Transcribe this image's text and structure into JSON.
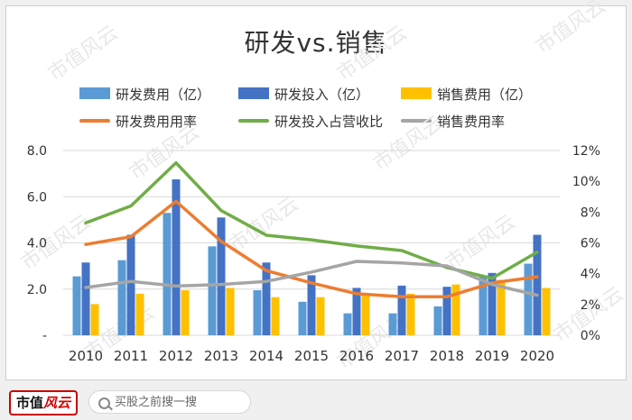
{
  "colors": {
    "rd_expense": "#5b9bd5",
    "rd_invest": "#4472c4",
    "sales_expense": "#ffc000",
    "rd_expense_rate": "#ed7d31",
    "rd_invest_ratio": "#70ad47",
    "sales_expense_rate": "#a5a5a5"
  },
  "watermark": "市值风云",
  "footer": {
    "brand_a": "市值",
    "brand_b": "风云",
    "search_text": "买股之前搜一搜",
    "search_icon": "search-icon"
  },
  "chart_data": {
    "type": "bar+line",
    "title": "研发vs.销售",
    "categories": [
      "2010",
      "2011",
      "2012",
      "2013",
      "2014",
      "2015",
      "2016",
      "2017",
      "2018",
      "2019",
      "2020"
    ],
    "y_left": {
      "min": 0,
      "max": 8,
      "ticks": [
        "-",
        "2.0",
        "4.0",
        "6.0",
        "8.0"
      ]
    },
    "y_right": {
      "min": 0,
      "max": 0.12,
      "ticks": [
        "0%",
        "2%",
        "4%",
        "6%",
        "8%",
        "10%",
        "12%"
      ]
    },
    "bar_series": [
      {
        "name": "研发费用（亿）",
        "color_key": "rd_expense",
        "values": [
          2.55,
          3.25,
          5.3,
          3.85,
          1.95,
          1.45,
          0.95,
          0.95,
          1.25,
          2.55,
          3.1
        ]
      },
      {
        "name": "研发投入（亿）",
        "color_key": "rd_invest",
        "values": [
          3.15,
          4.35,
          6.75,
          5.1,
          3.15,
          2.6,
          2.05,
          2.15,
          2.1,
          2.7,
          4.35
        ]
      },
      {
        "name": "销售费用（亿）",
        "color_key": "sales_expense",
        "values": [
          1.35,
          1.8,
          1.95,
          2.05,
          1.65,
          1.65,
          1.75,
          1.8,
          2.2,
          2.4,
          2.05
        ]
      }
    ],
    "line_series": [
      {
        "name": "研发费用用率",
        "color_key": "rd_expense_rate",
        "values": [
          0.059,
          0.064,
          0.087,
          0.061,
          0.042,
          0.034,
          0.027,
          0.025,
          0.025,
          0.034,
          0.038
        ]
      },
      {
        "name": "研发投入占营收比",
        "color_key": "rd_invest_ratio",
        "values": [
          0.073,
          0.084,
          0.112,
          0.081,
          0.065,
          0.062,
          0.058,
          0.055,
          0.044,
          0.037,
          0.054
        ]
      },
      {
        "name": "销售费用率",
        "color_key": "sales_expense_rate",
        "values": [
          0.031,
          0.035,
          0.032,
          0.033,
          0.035,
          0.041,
          0.048,
          0.047,
          0.045,
          0.033,
          0.026
        ]
      }
    ]
  }
}
